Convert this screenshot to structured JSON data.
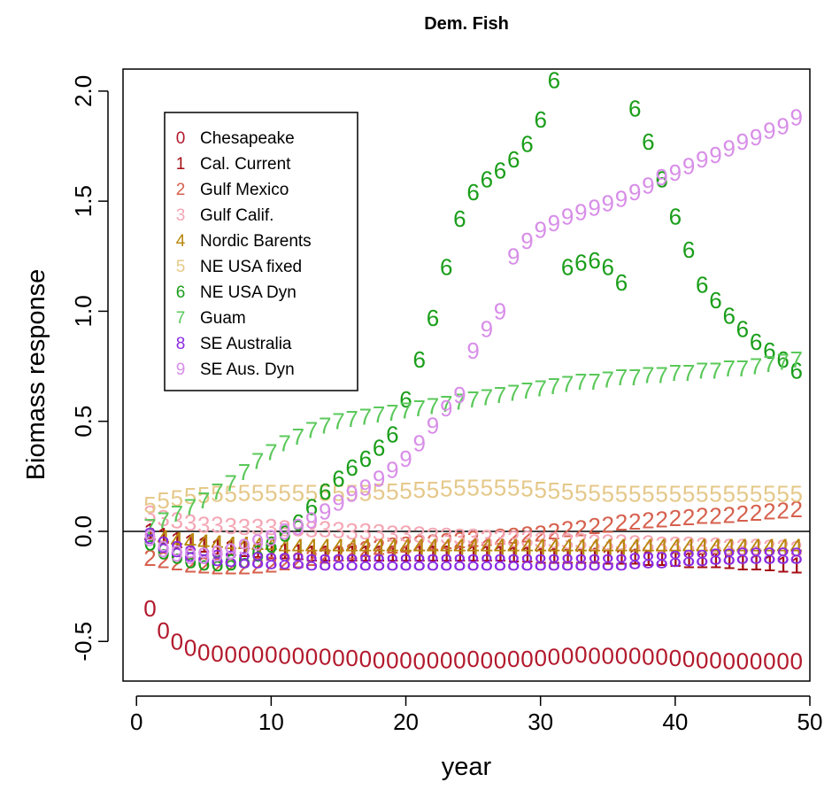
{
  "chart_data": {
    "type": "scatter",
    "title": "Dem. Fish",
    "xlabel": "year",
    "ylabel": "Biomass response",
    "xlim": [
      -1,
      50
    ],
    "ylim": [
      -0.68,
      2.1
    ],
    "xticks": [
      0,
      10,
      20,
      30,
      40,
      50
    ],
    "yticks": [
      -0.5,
      0.0,
      0.5,
      1.0,
      1.5,
      2.0
    ],
    "ytick_labels": [
      "-0.5",
      "0.0",
      "0.5",
      "1.0",
      "1.5",
      "2.0"
    ],
    "hline": 0,
    "legend_position": "top-left",
    "series": [
      {
        "name": "Chesapeake",
        "symbol": "0",
        "color": "#b2182b",
        "y": [
          -0.35,
          -0.45,
          -0.5,
          -0.53,
          -0.55,
          -0.555,
          -0.56,
          -0.56,
          -0.56,
          -0.56,
          -0.565,
          -0.565,
          -0.57,
          -0.57,
          -0.575,
          -0.575,
          -0.58,
          -0.585,
          -0.585,
          -0.585,
          -0.59,
          -0.585,
          -0.585,
          -0.585,
          -0.58,
          -0.585,
          -0.585,
          -0.58,
          -0.58,
          -0.575,
          -0.57,
          -0.565,
          -0.56,
          -0.565,
          -0.565,
          -0.565,
          -0.565,
          -0.57,
          -0.57,
          -0.575,
          -0.58,
          -0.585,
          -0.585,
          -0.59,
          -0.59,
          -0.59,
          -0.59,
          -0.59,
          -0.59
        ]
      },
      {
        "name": "Cal. Current",
        "symbol": "1",
        "color": "#a50f15",
        "y": [
          0.0,
          -0.02,
          -0.04,
          -0.05,
          -0.06,
          -0.07,
          -0.075,
          -0.08,
          -0.085,
          -0.09,
          -0.09,
          -0.095,
          -0.1,
          -0.1,
          -0.1,
          -0.1,
          -0.1,
          -0.1,
          -0.1,
          -0.1,
          -0.1,
          -0.1,
          -0.1,
          -0.1,
          -0.1,
          -0.1,
          -0.1,
          -0.105,
          -0.105,
          -0.11,
          -0.11,
          -0.11,
          -0.11,
          -0.11,
          -0.115,
          -0.115,
          -0.115,
          -0.12,
          -0.12,
          -0.125,
          -0.13,
          -0.13,
          -0.13,
          -0.135,
          -0.14,
          -0.14,
          -0.145,
          -0.15,
          -0.155
        ]
      },
      {
        "name": "Gulf Mexico",
        "symbol": "2",
        "color": "#d6604d",
        "y": [
          -0.12,
          -0.13,
          -0.14,
          -0.15,
          -0.155,
          -0.16,
          -0.16,
          -0.16,
          -0.155,
          -0.15,
          -0.14,
          -0.13,
          -0.12,
          -0.11,
          -0.1,
          -0.09,
          -0.08,
          -0.07,
          -0.065,
          -0.06,
          -0.055,
          -0.05,
          -0.045,
          -0.04,
          -0.035,
          -0.03,
          -0.025,
          -0.02,
          -0.015,
          -0.01,
          0.0,
          0.01,
          0.015,
          0.025,
          0.03,
          0.04,
          0.045,
          0.05,
          0.055,
          0.06,
          0.065,
          0.07,
          0.07,
          0.075,
          0.08,
          0.085,
          0.09,
          0.095,
          0.1
        ]
      },
      {
        "name": "Gulf Calif.",
        "symbol": "3",
        "color": "#f4a6b4",
        "y": [
          0.08,
          0.06,
          0.05,
          0.04,
          0.03,
          0.03,
          0.025,
          0.02,
          0.02,
          0.02,
          0.015,
          0.015,
          0.01,
          0.01,
          0.005,
          0.0,
          0.0,
          -0.005,
          -0.01,
          -0.01,
          -0.015,
          -0.02,
          -0.02,
          -0.025,
          -0.025,
          -0.03,
          -0.03,
          -0.035,
          -0.035,
          -0.04,
          -0.04,
          -0.045,
          -0.045,
          -0.05,
          -0.05,
          -0.05,
          -0.055,
          -0.055,
          -0.06,
          -0.06,
          -0.06,
          -0.065,
          -0.065,
          -0.07,
          -0.07,
          -0.07,
          -0.075,
          -0.075,
          -0.08
        ]
      },
      {
        "name": "Nordic Barents",
        "symbol": "4",
        "color": "#b8860b",
        "y": [
          -0.02,
          -0.03,
          -0.04,
          -0.045,
          -0.05,
          -0.055,
          -0.06,
          -0.06,
          -0.065,
          -0.065,
          -0.07,
          -0.07,
          -0.07,
          -0.07,
          -0.07,
          -0.07,
          -0.07,
          -0.07,
          -0.07,
          -0.07,
          -0.07,
          -0.07,
          -0.07,
          -0.07,
          -0.07,
          -0.07,
          -0.07,
          -0.07,
          -0.07,
          -0.07,
          -0.07,
          -0.07,
          -0.07,
          -0.07,
          -0.07,
          -0.07,
          -0.07,
          -0.07,
          -0.07,
          -0.07,
          -0.07,
          -0.07,
          -0.07,
          -0.07,
          -0.07,
          -0.07,
          -0.07,
          -0.07,
          -0.07
        ]
      },
      {
        "name": "NE USA fixed",
        "symbol": "5",
        "color": "#e5c88a",
        "y": [
          0.12,
          0.14,
          0.15,
          0.16,
          0.165,
          0.17,
          0.17,
          0.175,
          0.175,
          0.175,
          0.175,
          0.175,
          0.175,
          0.175,
          0.175,
          0.175,
          0.175,
          0.18,
          0.18,
          0.185,
          0.19,
          0.19,
          0.195,
          0.2,
          0.2,
          0.2,
          0.2,
          0.2,
          0.195,
          0.19,
          0.185,
          0.18,
          0.175,
          0.175,
          0.17,
          0.17,
          0.17,
          0.17,
          0.17,
          0.17,
          0.17,
          0.17,
          0.17,
          0.17,
          0.17,
          0.17,
          0.17,
          0.17,
          0.17
        ]
      },
      {
        "name": "NE USA Dyn",
        "symbol": "6",
        "color": "#1a9e1a",
        "x": [
          1,
          2,
          3,
          4,
          5,
          6,
          7,
          8,
          9,
          10,
          11,
          12,
          13,
          14,
          15,
          16,
          17,
          18,
          19,
          20,
          21,
          22,
          23,
          24,
          25,
          26,
          27,
          28,
          29,
          30,
          31,
          32,
          33,
          34,
          35,
          36,
          37,
          38,
          39,
          40,
          41,
          42,
          43,
          44,
          45,
          46,
          47,
          48,
          49
        ],
        "y": [
          -0.05,
          -0.09,
          -0.11,
          -0.13,
          -0.14,
          -0.145,
          -0.14,
          -0.13,
          -0.1,
          -0.06,
          -0.01,
          0.04,
          0.11,
          0.18,
          0.24,
          0.29,
          0.33,
          0.38,
          0.44,
          0.6,
          0.78,
          0.97,
          1.2,
          1.42,
          1.54,
          1.6,
          1.64,
          1.69,
          1.76,
          1.87,
          2.05,
          1.2,
          1.22,
          1.23,
          1.2,
          1.13,
          1.92,
          1.77,
          1.6,
          1.43,
          1.28,
          1.12,
          1.05,
          0.98,
          0.92,
          0.86,
          0.82,
          0.78,
          0.73
        ]
      },
      {
        "name": "Guam",
        "symbol": "7",
        "color": "#5ac85a",
        "y": [
          0.02,
          0.05,
          0.08,
          0.11,
          0.14,
          0.18,
          0.22,
          0.27,
          0.32,
          0.36,
          0.4,
          0.43,
          0.46,
          0.48,
          0.5,
          0.51,
          0.52,
          0.53,
          0.54,
          0.55,
          0.56,
          0.57,
          0.58,
          0.59,
          0.6,
          0.61,
          0.62,
          0.63,
          0.64,
          0.65,
          0.66,
          0.67,
          0.68,
          0.68,
          0.69,
          0.7,
          0.7,
          0.71,
          0.71,
          0.72,
          0.72,
          0.73,
          0.73,
          0.74,
          0.74,
          0.75,
          0.76,
          0.77,
          0.78
        ]
      },
      {
        "name": "SE Australia",
        "symbol": "8",
        "color": "#8a2be2",
        "y": [
          -0.02,
          -0.06,
          -0.08,
          -0.1,
          -0.11,
          -0.12,
          -0.125,
          -0.13,
          -0.13,
          -0.135,
          -0.135,
          -0.135,
          -0.14,
          -0.14,
          -0.14,
          -0.14,
          -0.14,
          -0.14,
          -0.14,
          -0.14,
          -0.14,
          -0.14,
          -0.14,
          -0.14,
          -0.14,
          -0.14,
          -0.14,
          -0.14,
          -0.14,
          -0.14,
          -0.14,
          -0.14,
          -0.14,
          -0.14,
          -0.14,
          -0.14,
          -0.135,
          -0.13,
          -0.13,
          -0.125,
          -0.12,
          -0.12,
          -0.115,
          -0.115,
          -0.11,
          -0.11,
          -0.11,
          -0.11,
          -0.11
        ]
      },
      {
        "name": "SE Aus. Dyn",
        "symbol": "9",
        "color": "#d88ee8",
        "y": [
          -0.03,
          -0.08,
          -0.1,
          -0.11,
          -0.11,
          -0.1,
          -0.09,
          -0.07,
          -0.05,
          -0.03,
          0.0,
          0.02,
          0.05,
          0.09,
          0.13,
          0.17,
          0.2,
          0.24,
          0.28,
          0.33,
          0.4,
          0.48,
          0.56,
          0.62,
          0.82,
          0.92,
          1.0,
          1.25,
          1.32,
          1.37,
          1.4,
          1.43,
          1.45,
          1.47,
          1.49,
          1.51,
          1.54,
          1.57,
          1.61,
          1.63,
          1.66,
          1.69,
          1.71,
          1.74,
          1.77,
          1.79,
          1.82,
          1.84,
          1.88
        ]
      }
    ]
  }
}
